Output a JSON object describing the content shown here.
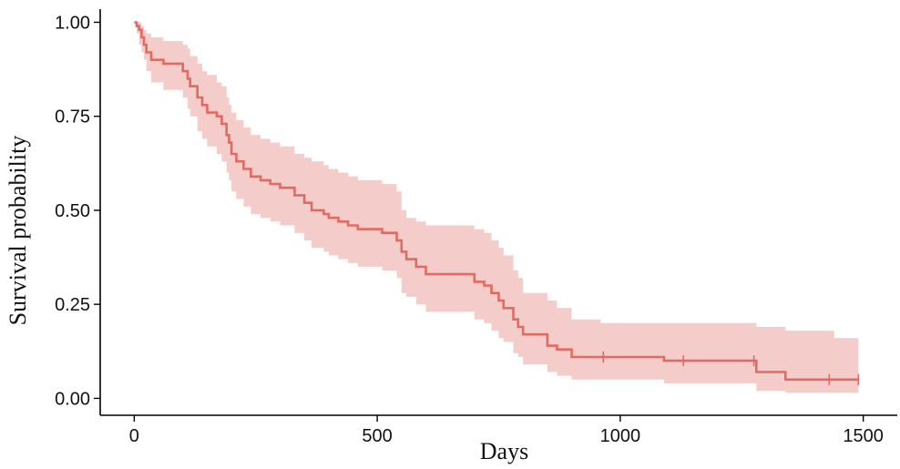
{
  "chart_data": {
    "type": "line",
    "xlabel": "Days",
    "ylabel": "Survival probability",
    "xlim": [
      -70,
      1570
    ],
    "ylim": [
      -0.045,
      1.035
    ],
    "x_ticks": [
      0,
      500,
      1000,
      1500
    ],
    "x_tick_labels": [
      "0",
      "500",
      "1000",
      "1500"
    ],
    "y_ticks": [
      0,
      0.25,
      0.5,
      0.75,
      1
    ],
    "y_tick_labels": [
      "0.00",
      "0.25",
      "0.50",
      "0.75",
      "1.00"
    ],
    "grid": false,
    "legend": "none",
    "colors": {
      "line": "#E06B63",
      "band": "#F2C3C0",
      "axis": "#000000"
    },
    "series": [
      {
        "step": true,
        "x": [
          0,
          5,
          10,
          15,
          20,
          25,
          35,
          60,
          100,
          110,
          115,
          130,
          140,
          150,
          170,
          180,
          190,
          195,
          200,
          210,
          225,
          240,
          260,
          280,
          300,
          330,
          350,
          365,
          390,
          400,
          420,
          440,
          460,
          510,
          540,
          550,
          560,
          580,
          600,
          700,
          720,
          735,
          750,
          760,
          780,
          790,
          800,
          850,
          870,
          900,
          960,
          1090,
          1130,
          1280,
          1340,
          1440,
          1490
        ],
        "y": [
          1.0,
          0.99,
          0.98,
          0.96,
          0.94,
          0.92,
          0.9,
          0.89,
          0.87,
          0.85,
          0.83,
          0.8,
          0.78,
          0.76,
          0.75,
          0.73,
          0.7,
          0.68,
          0.65,
          0.63,
          0.61,
          0.59,
          0.58,
          0.57,
          0.56,
          0.54,
          0.52,
          0.5,
          0.49,
          0.48,
          0.47,
          0.46,
          0.45,
          0.44,
          0.42,
          0.39,
          0.37,
          0.35,
          0.33,
          0.31,
          0.3,
          0.28,
          0.26,
          0.24,
          0.21,
          0.19,
          0.17,
          0.14,
          0.13,
          0.11,
          0.11,
          0.1,
          0.1,
          0.07,
          0.05,
          0.05,
          0.05
        ],
        "lower": [
          1.0,
          0.97,
          0.94,
          0.92,
          0.9,
          0.87,
          0.84,
          0.82,
          0.8,
          0.77,
          0.75,
          0.71,
          0.69,
          0.67,
          0.65,
          0.63,
          0.6,
          0.58,
          0.55,
          0.53,
          0.51,
          0.49,
          0.48,
          0.47,
          0.46,
          0.44,
          0.42,
          0.4,
          0.39,
          0.38,
          0.37,
          0.36,
          0.35,
          0.34,
          0.32,
          0.28,
          0.27,
          0.25,
          0.23,
          0.21,
          0.2,
          0.18,
          0.16,
          0.15,
          0.12,
          0.11,
          0.09,
          0.07,
          0.06,
          0.05,
          0.05,
          0.04,
          0.04,
          0.02,
          0.015,
          0.015,
          0.015
        ],
        "upper": [
          1.0,
          1.0,
          1.0,
          0.99,
          0.98,
          0.97,
          0.96,
          0.95,
          0.94,
          0.93,
          0.91,
          0.89,
          0.87,
          0.86,
          0.84,
          0.83,
          0.8,
          0.78,
          0.76,
          0.74,
          0.72,
          0.7,
          0.69,
          0.68,
          0.67,
          0.65,
          0.64,
          0.63,
          0.62,
          0.61,
          0.6,
          0.59,
          0.58,
          0.57,
          0.55,
          0.5,
          0.48,
          0.47,
          0.46,
          0.45,
          0.44,
          0.42,
          0.4,
          0.38,
          0.34,
          0.32,
          0.28,
          0.26,
          0.24,
          0.21,
          0.2,
          0.2,
          0.2,
          0.19,
          0.18,
          0.16,
          0.16
        ]
      }
    ],
    "censor_x": [
      965,
      1130,
      1275,
      1430,
      1490
    ]
  }
}
